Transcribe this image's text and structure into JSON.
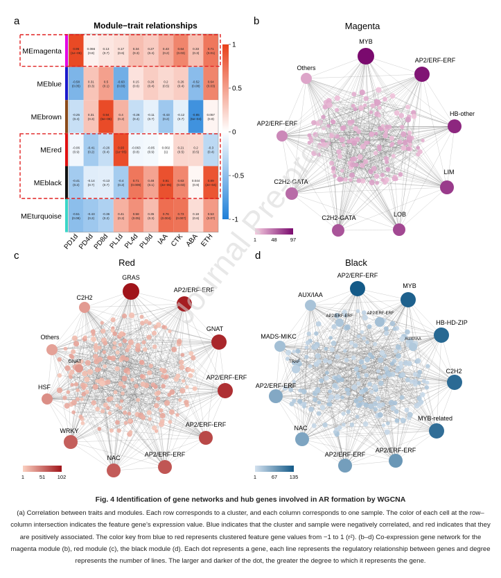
{
  "panels": {
    "a": {
      "letter": "a",
      "title": "Module−trait relationships",
      "modules": [
        "MEmagenta",
        "MEblue",
        "MEbrown",
        "MEred",
        "MEblack",
        "MEturquoise"
      ],
      "module_colors": [
        "#e300e3",
        "#1a1acc",
        "#8b4a1a",
        "#e01010",
        "#111111",
        "#3ad6c8"
      ],
      "highlighted_modules": [
        "MEmagenta",
        "MEred",
        "MEblack"
      ],
      "traits": [
        "PD1d",
        "PD4d",
        "PD8d",
        "PL1d",
        "PL4d",
        "PL8d",
        "IAA",
        "CTK",
        "ABA",
        "ETH"
      ],
      "colorbar_ticks": [
        "1",
        "0.5",
        "0",
        "-0.5",
        "-1"
      ],
      "cells": [
        [
          {
            "r": "0.95",
            "p": "(1e−05)",
            "v": 0.95
          },
          {
            "r": "0.066",
            "p": "(0.8)",
            "v": 0.066
          },
          {
            "r": "0.13",
            "p": "(0.7)",
            "v": 0.13
          },
          {
            "r": "0.17",
            "p": "(0.6)",
            "v": 0.17
          },
          {
            "r": "0.34",
            "p": "(0.3)",
            "v": 0.34
          },
          {
            "r": "0.27",
            "p": "(0.4)",
            "v": 0.27
          },
          {
            "r": "0.43",
            "p": "(0.2)",
            "v": 0.43
          },
          {
            "r": "0.64",
            "p": "(0.03)",
            "v": 0.64
          },
          {
            "r": "0.33",
            "p": "(0.3)",
            "v": 0.33
          },
          {
            "r": "0.71",
            "p": "(0.01)",
            "v": 0.71
          }
        ],
        [
          {
            "r": "-0.58",
            "p": "(0.05)",
            "v": -0.58
          },
          {
            "r": "0.31",
            "p": "(0.3)",
            "v": 0.31
          },
          {
            "r": "0.5",
            "p": "(0.1)",
            "v": 0.5
          },
          {
            "r": "-0.63",
            "p": "(0.03)",
            "v": -0.63
          },
          {
            "r": "0.15",
            "p": "(0.6)",
            "v": 0.15
          },
          {
            "r": "0.26",
            "p": "(0.4)",
            "v": 0.26
          },
          {
            "r": "0.2",
            "p": "(0.5)",
            "v": 0.2
          },
          {
            "r": "0.26",
            "p": "(0.4)",
            "v": 0.26
          },
          {
            "r": "-0.52",
            "p": "(0.08)",
            "v": -0.52
          },
          {
            "r": "0.64",
            "p": "(0.03)",
            "v": 0.64
          }
        ],
        [
          {
            "r": "-0.25",
            "p": "(0.4)",
            "v": -0.25
          },
          {
            "r": "0.31",
            "p": "(0.3)",
            "v": 0.31
          },
          {
            "r": "0.94",
            "p": "(5e−06)",
            "v": 0.94
          },
          {
            "r": "0.4",
            "p": "(0.2)",
            "v": 0.4
          },
          {
            "r": "-0.26",
            "p": "(0.4)",
            "v": -0.26
          },
          {
            "r": "-0.11",
            "p": "(0.7)",
            "v": -0.11
          },
          {
            "r": "-0.43",
            "p": "(0.2)",
            "v": -0.43
          },
          {
            "r": "-0.12",
            "p": "(0.7)",
            "v": -0.12
          },
          {
            "r": "-0.85",
            "p": "(5e−04)",
            "v": -0.85
          },
          {
            "r": "0.057",
            "p": "(0.9)",
            "v": 0.057
          }
        ],
        [
          {
            "r": "-0.06",
            "p": "(0.9)",
            "v": -0.06
          },
          {
            "r": "-0.41",
            "p": "(0.2)",
            "v": -0.41
          },
          {
            "r": "-0.26",
            "p": "(0.4)",
            "v": -0.26
          },
          {
            "r": "0.93",
            "p": "(1e−05)",
            "v": 0.93
          },
          {
            "r": "-0.063",
            "p": "(0.8)",
            "v": -0.063
          },
          {
            "r": "-0.05",
            "p": "(0.9)",
            "v": -0.05
          },
          {
            "r": "0.002",
            "p": "(1)",
            "v": 0.002
          },
          {
            "r": "0.21",
            "p": "(0.5)",
            "v": 0.21
          },
          {
            "r": "0.2",
            "p": "(0.5)",
            "v": 0.2
          },
          {
            "r": "-0.3",
            "p": "(0.4)",
            "v": -0.3
          }
        ],
        [
          {
            "r": "-0.41",
            "p": "(0.2)",
            "v": -0.41
          },
          {
            "r": "-0.14",
            "p": "(0.7)",
            "v": -0.14
          },
          {
            "r": "-0.13",
            "p": "(0.7)",
            "v": -0.13
          },
          {
            "r": "-0.4",
            "p": "(0.2)",
            "v": -0.4
          },
          {
            "r": "0.71",
            "p": "(0.009)",
            "v": 0.71
          },
          {
            "r": "0.48",
            "p": "(0.1)",
            "v": 0.48
          },
          {
            "r": "0.91",
            "p": "(4e−05)",
            "v": 0.91
          },
          {
            "r": "0.63",
            "p": "(0.03)",
            "v": 0.63
          },
          {
            "r": "0.044",
            "p": "(0.9)",
            "v": 0.044
          },
          {
            "r": "0.89",
            "p": "(2e−04)",
            "v": 0.89
          }
        ],
        [
          {
            "r": "-0.51",
            "p": "(0.09)",
            "v": -0.51
          },
          {
            "r": "-0.43",
            "p": "(0.2)",
            "v": -0.43
          },
          {
            "r": "-0.36",
            "p": "(0.2)",
            "v": -0.36
          },
          {
            "r": "0.41",
            "p": "(0.2)",
            "v": 0.41
          },
          {
            "r": "0.58",
            "p": "(0.05)",
            "v": 0.58
          },
          {
            "r": "0.35",
            "p": "(0.3)",
            "v": 0.35
          },
          {
            "r": "0.76",
            "p": "(0.004)",
            "v": 0.76
          },
          {
            "r": "0.73",
            "p": "(0.007)",
            "v": 0.73
          },
          {
            "r": "0.18",
            "p": "(0.6)",
            "v": 0.18
          },
          {
            "r": "0.53",
            "p": "(0.07)",
            "v": 0.53
          }
        ]
      ]
    },
    "b": {
      "letter": "b",
      "title": "Magenta",
      "colorscale": {
        "min": "1",
        "mid": "48",
        "max": "97",
        "from": "#f6cce0",
        "to": "#7a0a6e"
      },
      "hubs": [
        {
          "label": "MYB",
          "intensity": 1.0
        },
        {
          "label": "AP2/ERF-ERF",
          "intensity": 0.95
        },
        {
          "label": "HB-other",
          "intensity": 0.85
        },
        {
          "label": "LIM",
          "intensity": 0.75
        },
        {
          "label": "LOB",
          "intensity": 0.68
        },
        {
          "label": "C2H2-GATA",
          "intensity": 0.62
        },
        {
          "label": "C2H2-GATA",
          "intensity": 0.5
        },
        {
          "label": "AP2/ERF-ERF",
          "intensity": 0.35
        },
        {
          "label": "Others",
          "intensity": 0.2
        }
      ]
    },
    "c": {
      "letter": "c",
      "title": "Red",
      "colorscale": {
        "min": "1",
        "mid": "51",
        "max": "102",
        "from": "#fbd0c0",
        "to": "#a0141a"
      },
      "hubs": [
        {
          "label": "GRAS",
          "intensity": 1.0
        },
        {
          "label": "AP2/ERF-ERF",
          "intensity": 0.95
        },
        {
          "label": "GNAT",
          "intensity": 0.9
        },
        {
          "label": "AP2/ERF-ERF",
          "intensity": 0.85
        },
        {
          "label": "AP2/ERF-ERF",
          "intensity": 0.72
        },
        {
          "label": "AP2/ERF-ERF",
          "intensity": 0.65
        },
        {
          "label": "NAC",
          "intensity": 0.62
        },
        {
          "label": "WRKY",
          "intensity": 0.6
        },
        {
          "label": "HSF",
          "intensity": 0.35
        },
        {
          "label": "Others",
          "intensity": 0.25
        },
        {
          "label": "C2H2",
          "intensity": 0.28
        }
      ],
      "inner_labels": [
        {
          "label": "GNAT",
          "intensity": 0.3
        }
      ]
    },
    "d": {
      "letter": "d",
      "title": "Black",
      "colorscale": {
        "min": "1",
        "mid": "67",
        "max": "135",
        "from": "#d3e1ef",
        "to": "#145a88"
      },
      "hubs": [
        {
          "label": "AP2/ERF-ERF",
          "intensity": 1.0
        },
        {
          "label": "MYB",
          "intensity": 0.95
        },
        {
          "label": "HB-HD-ZIP",
          "intensity": 0.9
        },
        {
          "label": "C2H2",
          "intensity": 0.88
        },
        {
          "label": "MYB-related",
          "intensity": 0.85
        },
        {
          "label": "AP2/ERF-ERF",
          "intensity": 0.55
        },
        {
          "label": "AP2/ERF-ERF",
          "intensity": 0.5
        },
        {
          "label": "NAC",
          "intensity": 0.45
        },
        {
          "label": "AP2/ERF-ERF",
          "intensity": 0.42
        },
        {
          "label": "MADS-MIKC",
          "intensity": 0.25
        },
        {
          "label": "AUX/IAA",
          "intensity": 0.22
        }
      ],
      "inner_hubs": [
        {
          "label": "AP2/ERF-ERF",
          "intensity": 0.2
        },
        {
          "label": "AP2/ERF-ERF",
          "intensity": 0.25
        },
        {
          "label": "AUX/IAA",
          "intensity": 0.18
        },
        {
          "label": "TRAF",
          "intensity": 0.12
        }
      ]
    }
  },
  "watermark": "Journal Pre-proof",
  "caption": {
    "title": "Fig. 4  Identification of gene networks and hub genes involved in AR formation by WGCNA",
    "body": "(a) Correlation between traits and modules. Each row corresponds to a cluster, and each column corresponds to one sample. The color of each cell at the row–column intersection indicates the feature gene’s expression value. Blue indicates that the cluster and sample were negatively correlated, and red indicates that they are positively associated. The color key from blue to red represents clustered feature gene values from −1 to 1 (r²). (b–d) Co-expression gene network for the magenta module (b), red module (c), the black module (d). Each dot represents a gene, each line represents the regulatory relationship between genes and degree represents the number of lines. The larger and darker of the dot, the greater the degree to which it represents the gene."
  }
}
